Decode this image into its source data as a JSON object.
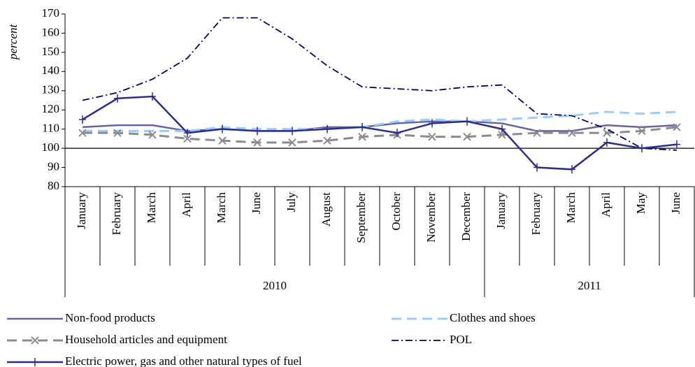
{
  "chart_data": {
    "type": "line",
    "y_label": "percent",
    "categories": [
      "January",
      "February",
      "March",
      "April",
      "March",
      "June",
      "July",
      "August",
      "September",
      "October",
      "November",
      "December",
      "January",
      "February",
      "March",
      "April",
      "May",
      "June"
    ],
    "groups": [
      {
        "label": "2010",
        "count": 12
      },
      {
        "label": "2011",
        "count": 6
      }
    ],
    "ylim": [
      80,
      170
    ],
    "yticks": [
      80,
      90,
      100,
      110,
      120,
      130,
      140,
      150,
      160,
      170
    ],
    "reference_line": 100,
    "series": [
      {
        "name": "Non-food products",
        "color": "#66669e",
        "line_style": "solid",
        "marker": "none",
        "values": [
          111,
          112,
          112,
          109,
          110,
          109,
          109,
          111,
          111,
          113,
          114,
          114,
          113,
          109,
          109,
          112,
          111,
          112
        ]
      },
      {
        "name": "Clothes and shoes",
        "color": "#99ccff",
        "line_style": "dashed",
        "marker": "none",
        "values": [
          109,
          109,
          109,
          109,
          111,
          110,
          110,
          110,
          111,
          114,
          115,
          114,
          115,
          116,
          117,
          119,
          118,
          119
        ]
      },
      {
        "name": "Household articles and equipment",
        "color": "#8c8c8c",
        "line_style": "dashed",
        "marker": "x",
        "values": [
          108,
          108,
          107,
          105,
          104,
          103,
          103,
          104,
          106,
          107,
          106,
          106,
          107,
          108,
          108,
          108,
          109,
          111
        ]
      },
      {
        "name": "POL",
        "color": "#000066",
        "line_style": "dashdot",
        "marker": "none",
        "values": [
          125,
          129,
          136,
          147,
          168,
          168,
          157,
          143,
          132,
          131,
          130,
          132,
          133,
          118,
          117,
          110,
          100,
          99
        ]
      },
      {
        "name": "Electric power, gas and other natural types of fuel",
        "color": "#2e2e8a",
        "line_style": "solid",
        "marker": "plus",
        "values": [
          115,
          126,
          127,
          108,
          110,
          109,
          109,
          110,
          111,
          108,
          113,
          114,
          110,
          90,
          89,
          103,
          100,
          102
        ]
      }
    ]
  }
}
